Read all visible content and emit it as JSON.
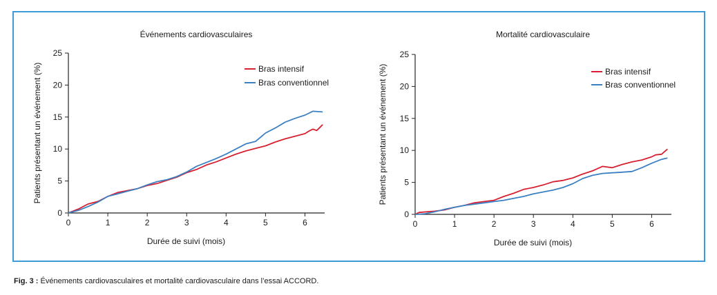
{
  "caption": {
    "label": "Fig. 3 :",
    "text": "Événements cardiovasculaires et mortalité cardiovasculaire dans l’essai ACCORD."
  },
  "colors": {
    "frame": "#3d9ad9",
    "intensif": "#d7202f",
    "conventionnel": "#3a7fc2",
    "axis": "#222222"
  },
  "chart_data": [
    {
      "type": "line",
      "title": "Événements cardiovasculaires",
      "xlabel": "Durée de suivi (mois)",
      "ylabel": "Patients présentant un événement (%)",
      "xlim": [
        0,
        6.5
      ],
      "ylim": [
        0,
        25
      ],
      "xticks": [
        "0",
        "1",
        "2",
        "3",
        "4",
        "5",
        "6"
      ],
      "yticks": [
        "0",
        "5",
        "10",
        "15",
        "20",
        "25"
      ],
      "grid": false,
      "legend": "top-right",
      "series": [
        {
          "name": "Bras intensif",
          "color": "#d7202f",
          "points": [
            [
              0,
              0
            ],
            [
              0.25,
              0.6
            ],
            [
              0.5,
              1.4
            ],
            [
              0.75,
              1.8
            ],
            [
              1,
              2.6
            ],
            [
              1.25,
              3.2
            ],
            [
              1.5,
              3.5
            ],
            [
              1.75,
              3.8
            ],
            [
              2,
              4.3
            ],
            [
              2.25,
              4.6
            ],
            [
              2.5,
              5.1
            ],
            [
              2.75,
              5.6
            ],
            [
              3,
              6.3
            ],
            [
              3.25,
              6.8
            ],
            [
              3.5,
              7.5
            ],
            [
              3.75,
              8.0
            ],
            [
              4,
              8.6
            ],
            [
              4.25,
              9.2
            ],
            [
              4.5,
              9.7
            ],
            [
              4.75,
              10.1
            ],
            [
              5,
              10.5
            ],
            [
              5.25,
              11.1
            ],
            [
              5.5,
              11.6
            ],
            [
              5.75,
              12.0
            ],
            [
              6,
              12.4
            ],
            [
              6.1,
              12.8
            ],
            [
              6.2,
              13.1
            ],
            [
              6.3,
              12.9
            ],
            [
              6.4,
              13.5
            ],
            [
              6.45,
              13.8
            ]
          ]
        },
        {
          "name": "Bras conventionnel",
          "color": "#3a7fc2",
          "points": [
            [
              0,
              0
            ],
            [
              0.25,
              0.4
            ],
            [
              0.5,
              1.0
            ],
            [
              0.75,
              1.7
            ],
            [
              1,
              2.6
            ],
            [
              1.25,
              3.0
            ],
            [
              1.5,
              3.4
            ],
            [
              1.75,
              3.8
            ],
            [
              2,
              4.4
            ],
            [
              2.25,
              4.9
            ],
            [
              2.5,
              5.2
            ],
            [
              2.75,
              5.7
            ],
            [
              3,
              6.4
            ],
            [
              3.25,
              7.3
            ],
            [
              3.5,
              7.9
            ],
            [
              3.75,
              8.5
            ],
            [
              4,
              9.2
            ],
            [
              4.25,
              10.0
            ],
            [
              4.5,
              10.8
            ],
            [
              4.75,
              11.2
            ],
            [
              5,
              12.5
            ],
            [
              5.25,
              13.3
            ],
            [
              5.5,
              14.2
            ],
            [
              5.75,
              14.8
            ],
            [
              6,
              15.3
            ],
            [
              6.2,
              15.9
            ],
            [
              6.45,
              15.8
            ]
          ]
        }
      ]
    },
    {
      "type": "line",
      "title": "Mortalité cardiovasculaire",
      "xlabel": "Durée de suivi (mois)",
      "ylabel": "Patients présentant un événement (%)",
      "xlim": [
        0,
        6.5
      ],
      "ylim": [
        0,
        25
      ],
      "xticks": [
        "0",
        "1",
        "2",
        "3",
        "4",
        "5",
        "6"
      ],
      "yticks": [
        "0",
        "5",
        "10",
        "15",
        "20",
        "25"
      ],
      "grid": false,
      "legend": "top-right",
      "series": [
        {
          "name": "Bras intensif",
          "color": "#d7202f",
          "points": [
            [
              0,
              0
            ],
            [
              0.1,
              0.3
            ],
            [
              0.5,
              0.5
            ],
            [
              0.75,
              0.7
            ],
            [
              1,
              1.1
            ],
            [
              1.25,
              1.4
            ],
            [
              1.5,
              1.8
            ],
            [
              1.75,
              2.0
            ],
            [
              2,
              2.2
            ],
            [
              2.25,
              2.8
            ],
            [
              2.5,
              3.3
            ],
            [
              2.75,
              3.9
            ],
            [
              3,
              4.2
            ],
            [
              3.25,
              4.6
            ],
            [
              3.5,
              5.1
            ],
            [
              3.75,
              5.3
            ],
            [
              4,
              5.7
            ],
            [
              4.25,
              6.3
            ],
            [
              4.5,
              6.8
            ],
            [
              4.75,
              7.5
            ],
            [
              5,
              7.3
            ],
            [
              5.25,
              7.8
            ],
            [
              5.5,
              8.2
            ],
            [
              5.75,
              8.5
            ],
            [
              6,
              9.0
            ],
            [
              6.1,
              9.3
            ],
            [
              6.25,
              9.4
            ],
            [
              6.4,
              10.2
            ]
          ]
        },
        {
          "name": "Bras conventionnel",
          "color": "#3a7fc2",
          "points": [
            [
              0,
              0
            ],
            [
              0.25,
              0.1
            ],
            [
              0.5,
              0.4
            ],
            [
              0.75,
              0.8
            ],
            [
              1,
              1.1
            ],
            [
              1.25,
              1.4
            ],
            [
              1.5,
              1.6
            ],
            [
              1.75,
              1.8
            ],
            [
              2,
              2.0
            ],
            [
              2.25,
              2.2
            ],
            [
              2.5,
              2.5
            ],
            [
              2.75,
              2.8
            ],
            [
              3,
              3.2
            ],
            [
              3.25,
              3.5
            ],
            [
              3.5,
              3.8
            ],
            [
              3.75,
              4.2
            ],
            [
              4,
              4.8
            ],
            [
              4.25,
              5.6
            ],
            [
              4.5,
              6.1
            ],
            [
              4.75,
              6.4
            ],
            [
              5,
              6.5
            ],
            [
              5.25,
              6.6
            ],
            [
              5.5,
              6.7
            ],
            [
              5.75,
              7.3
            ],
            [
              6,
              8.0
            ],
            [
              6.25,
              8.6
            ],
            [
              6.4,
              8.8
            ]
          ]
        }
      ]
    }
  ]
}
